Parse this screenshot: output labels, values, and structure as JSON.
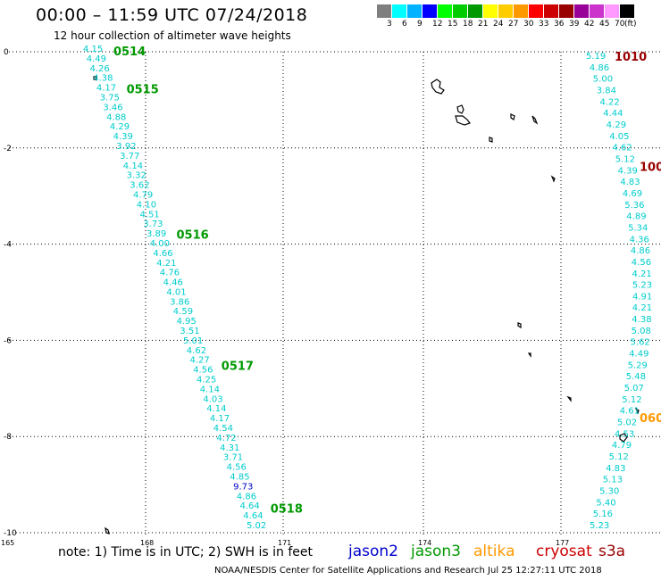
{
  "header": {
    "title": "00:00 – 11:59 UTC 07/24/2018",
    "subtitle": "12 hour collection of altimeter wave heights"
  },
  "legend": {
    "colors": [
      "#7f7f7f",
      "#00ffff",
      "#00b2ff",
      "#0000ff",
      "#00ff00",
      "#00cc00",
      "#009900",
      "#ffff00",
      "#ffcc00",
      "#ff9900",
      "#ff0000",
      "#cc0000",
      "#990000",
      "#990099",
      "#cc33cc",
      "#ff99ff",
      "#000000"
    ],
    "labels": [
      "3",
      "6",
      "9",
      "12",
      "15",
      "18",
      "21",
      "24",
      "27",
      "30",
      "33",
      "36",
      "39",
      "42",
      "45",
      "70",
      "(ft)"
    ]
  },
  "footer": {
    "note": "note: 1) Time is in UTC; 2) SWH is in feet",
    "satellites": [
      {
        "label": "jason2",
        "color": "#0000cc"
      },
      {
        "label": "jason3",
        "color": "#009900"
      },
      {
        "label": "altika",
        "color": "#ff9900"
      },
      {
        "label": "cryosat",
        "color": "#cc0000"
      },
      {
        "label": "s3a",
        "color": "#990000"
      }
    ],
    "credit": "NOAA/NESDIS Center for Satellite Applications and Research    Jul 25 12:27:11 UTC 2018"
  },
  "chart_data": {
    "type": "scatter",
    "title": "12 hour collection of altimeter wave heights",
    "xlim": [
      165,
      178.5
    ],
    "ylim": [
      -10,
      0
    ],
    "x_ticks": [
      {
        "value": 165,
        "label": "165"
      },
      {
        "value": 168,
        "label": "168"
      },
      {
        "value": 171,
        "label": "171"
      },
      {
        "value": 174,
        "label": "174"
      },
      {
        "value": 177,
        "label": "177"
      }
    ],
    "y_ticks": [
      {
        "value": 0,
        "label": "0"
      },
      {
        "value": -2,
        "label": "-2"
      },
      {
        "value": -4,
        "label": "-4"
      },
      {
        "value": -6,
        "label": "-6"
      },
      {
        "value": -8,
        "label": "-8"
      },
      {
        "value": -10,
        "label": "-10"
      }
    ],
    "tracks": [
      {
        "satellite": "jason3",
        "x_start": 166.75,
        "y_start": 0.0,
        "x_end": 168.95,
        "y_end": -10.0,
        "values": [
          "4.15",
          "4.49",
          "4.26",
          "4.38",
          "4.17",
          "3.75",
          "3.46",
          "4.88",
          "4.29",
          "4.39",
          "3.92",
          "3.77",
          "4.14",
          "3.32",
          "3.62",
          "4.79",
          "4.10",
          "4.51",
          "3.73",
          "3.89",
          "4.00",
          "4.66",
          "4.21",
          "4.76",
          "4.46",
          "4.01",
          "3.86",
          "4.59",
          "4.95",
          "3.51",
          "5.01",
          "4.62",
          "4.27",
          "4.56",
          "4.25",
          "4.14",
          "4.03",
          "4.14",
          "4.17",
          "4.54",
          "4.72",
          "4.31",
          "3.71",
          "4.56",
          "4.85",
          "9.73",
          "4.86",
          "4.64",
          "4.64",
          "5.02"
        ],
        "colors_highlight": {
          "45": "#0000cc"
        },
        "time_labels": [
          {
            "label": "0514",
            "y": 0.0
          },
          {
            "label": "0515",
            "y": -0.8
          },
          {
            "label": "0516",
            "y": -3.85
          },
          {
            "label": "0517",
            "y": -6.6
          },
          {
            "label": "0518",
            "y": -9.6
          }
        ]
      },
      {
        "satellite": "jason3",
        "x_start": 178.0,
        "y_start": 0.0,
        "x_end": 177.6,
        "y_end": -10.0,
        "values": [
          "5.19",
          "4.86",
          "5.00",
          "3.84",
          "4.22",
          "4.44",
          "4.29",
          "4.05",
          "4.62",
          "5.12",
          "4.39",
          "4.83",
          "4.69",
          "5.36",
          "4.89",
          "5.34",
          "4.36",
          "4.86",
          "4.56",
          "4.21",
          "5.23",
          "4.91",
          "4.21",
          "4.38",
          "5.08",
          "5.62",
          "4.49",
          "5.29",
          "5.48",
          "5.07",
          "5.12",
          "4.61",
          "5.02",
          "4.53",
          "4.79",
          "5.12",
          "4.83",
          "5.13",
          "5.30",
          "5.40",
          "5.16",
          "5.23"
        ],
        "time_labels": [
          {
            "label": "1010",
            "y": 0.0,
            "color": "#990000"
          },
          {
            "label": "100",
            "y": -2.35,
            "color": "#990000"
          },
          {
            "label": "060",
            "y": -7.7,
            "color": "#ff9900"
          }
        ]
      }
    ]
  }
}
